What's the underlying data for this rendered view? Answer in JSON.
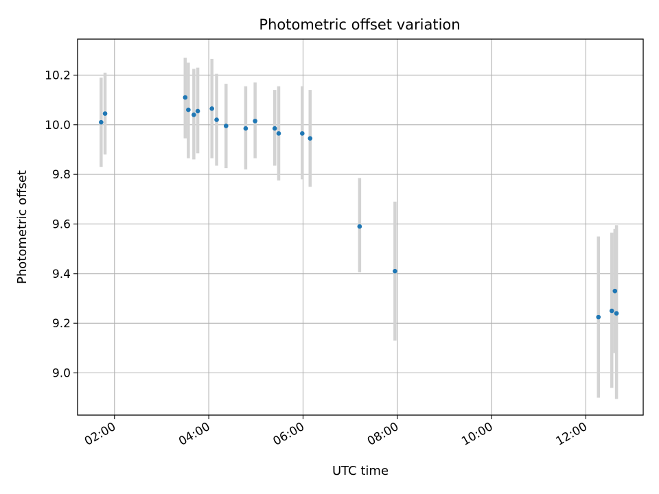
{
  "chart_data": {
    "type": "scatter",
    "title": "Photometric offset variation",
    "xlabel": "UTC time",
    "ylabel": "Photometric offset",
    "x_ticks": [
      "02:00",
      "04:00",
      "06:00",
      "08:00",
      "10:00",
      "12:00"
    ],
    "y_ticks": [
      "9.0",
      "9.2",
      "9.4",
      "9.6",
      "9.8",
      "10.0",
      "10.2"
    ],
    "xlim": [
      "01:13",
      "13:13"
    ],
    "ylim": [
      8.83,
      10.345
    ],
    "grid": true,
    "colors": {
      "point": "#1f77b4",
      "errorbar": "#d3d3d3",
      "grid": "#b0b0b0"
    },
    "points": [
      {
        "x": "01:43",
        "y": 10.01,
        "err_low": 9.83,
        "err_high": 10.19
      },
      {
        "x": "01:48",
        "y": 10.045,
        "err_low": 9.88,
        "err_high": 10.21
      },
      {
        "x": "03:30",
        "y": 10.11,
        "err_low": 9.945,
        "err_high": 10.27
      },
      {
        "x": "03:34",
        "y": 10.06,
        "err_low": 9.865,
        "err_high": 10.25
      },
      {
        "x": "03:41",
        "y": 10.04,
        "err_low": 9.86,
        "err_high": 10.225
      },
      {
        "x": "03:46",
        "y": 10.055,
        "err_low": 9.885,
        "err_high": 10.23
      },
      {
        "x": "04:04",
        "y": 10.065,
        "err_low": 9.865,
        "err_high": 10.265
      },
      {
        "x": "04:10",
        "y": 10.02,
        "err_low": 9.835,
        "err_high": 10.205
      },
      {
        "x": "04:22",
        "y": 9.995,
        "err_low": 9.825,
        "err_high": 10.165
      },
      {
        "x": "04:47",
        "y": 9.985,
        "err_low": 9.82,
        "err_high": 10.155
      },
      {
        "x": "04:59",
        "y": 10.015,
        "err_low": 9.865,
        "err_high": 10.17
      },
      {
        "x": "05:24",
        "y": 9.985,
        "err_low": 9.835,
        "err_high": 10.14
      },
      {
        "x": "05:29",
        "y": 9.965,
        "err_low": 9.775,
        "err_high": 10.155
      },
      {
        "x": "05:59",
        "y": 9.965,
        "err_low": 9.78,
        "err_high": 10.155
      },
      {
        "x": "06:09",
        "y": 9.945,
        "err_low": 9.75,
        "err_high": 10.14
      },
      {
        "x": "07:12",
        "y": 9.59,
        "err_low": 9.405,
        "err_high": 9.785
      },
      {
        "x": "07:57",
        "y": 9.41,
        "err_low": 9.13,
        "err_high": 9.69
      },
      {
        "x": "12:16",
        "y": 9.225,
        "err_low": 8.9,
        "err_high": 9.55
      },
      {
        "x": "12:33",
        "y": 9.25,
        "err_low": 8.94,
        "err_high": 9.565
      },
      {
        "x": "12:37",
        "y": 9.33,
        "err_low": 9.08,
        "err_high": 9.58
      },
      {
        "x": "12:39",
        "y": 9.24,
        "err_low": 8.895,
        "err_high": 9.595
      }
    ]
  }
}
